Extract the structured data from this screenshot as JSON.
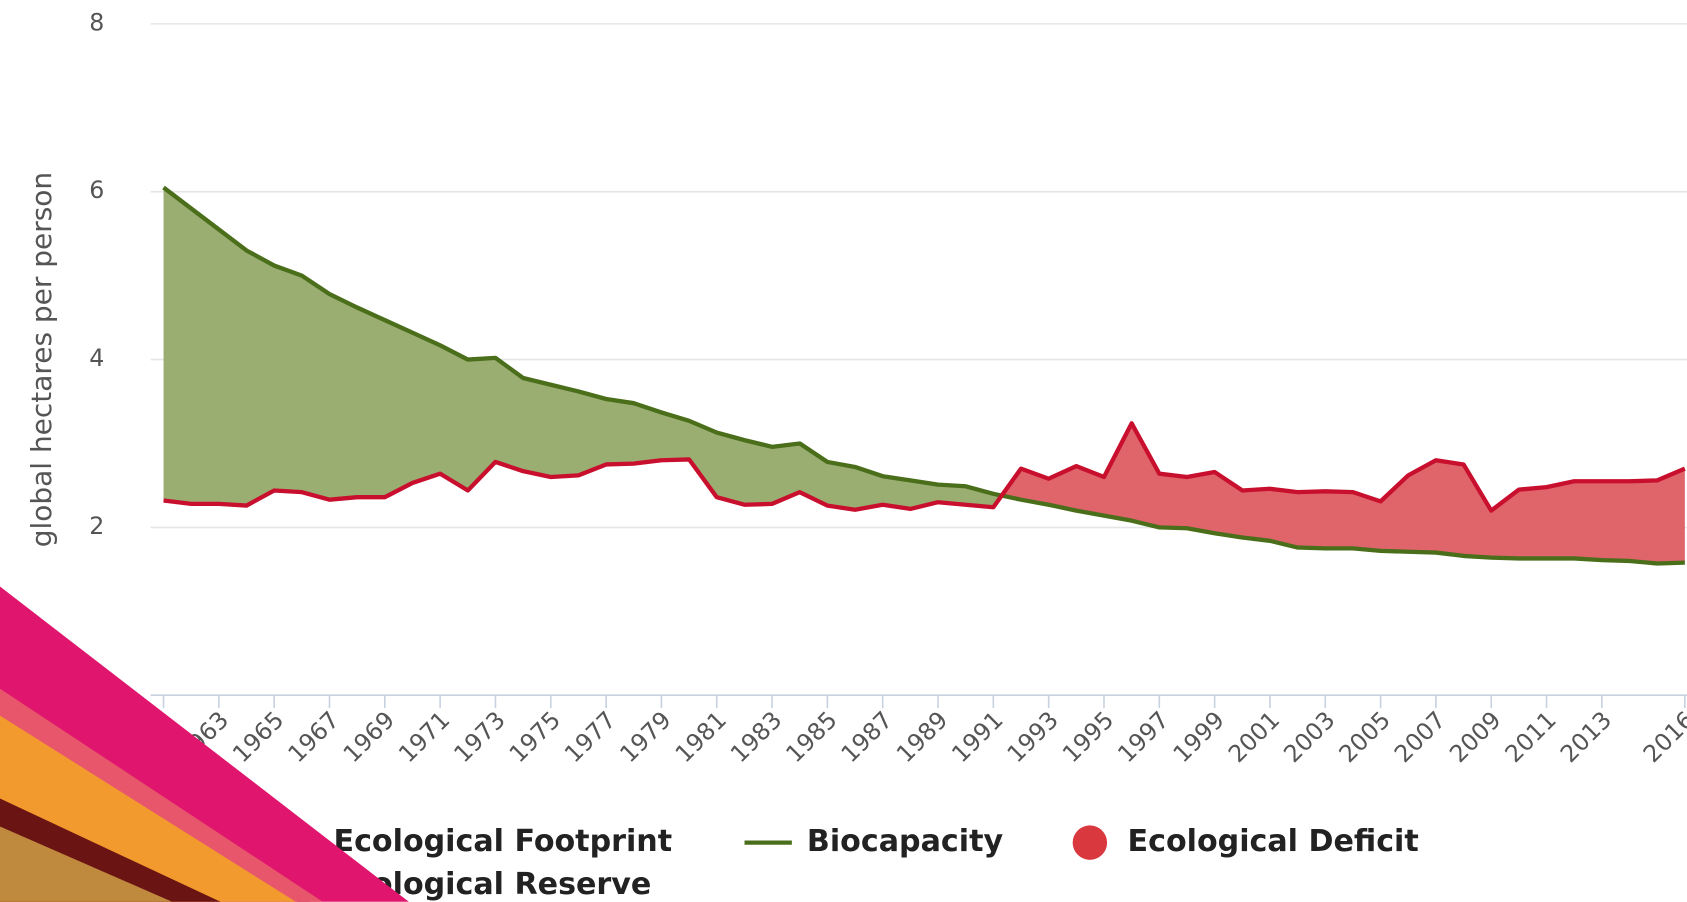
{
  "chart_data": {
    "type": "line",
    "y_label": "global hectares per person",
    "x": [
      1961,
      1962,
      1963,
      1964,
      1965,
      1966,
      1967,
      1968,
      1969,
      1970,
      1971,
      1972,
      1973,
      1974,
      1975,
      1976,
      1977,
      1978,
      1979,
      1980,
      1981,
      1982,
      1983,
      1984,
      1985,
      1986,
      1987,
      1988,
      1989,
      1990,
      1991,
      1992,
      1993,
      1994,
      1995,
      1996,
      1997,
      1998,
      1999,
      2000,
      2001,
      2002,
      2003,
      2004,
      2005,
      2006,
      2007,
      2008,
      2009,
      2010,
      2011,
      2012,
      2013,
      2014,
      2015,
      2016
    ],
    "xlim": [
      1961,
      2016
    ],
    "xticks": [
      1961,
      1963,
      1965,
      1967,
      1969,
      1971,
      1973,
      1975,
      1977,
      1979,
      1981,
      1983,
      1985,
      1987,
      1989,
      1991,
      1993,
      1995,
      1997,
      1999,
      2001,
      2003,
      2005,
      2007,
      2009,
      2011,
      2013,
      2016
    ],
    "ylim": [
      0,
      8
    ],
    "yticks": [
      0,
      2,
      4,
      6,
      8
    ],
    "grid": true,
    "series": [
      {
        "name": "Ecological Footprint",
        "color": "#c8102e",
        "values": [
          2.32,
          2.28,
          2.28,
          2.26,
          2.44,
          2.42,
          2.33,
          2.36,
          2.36,
          2.53,
          2.64,
          2.44,
          2.78,
          2.67,
          2.6,
          2.62,
          2.75,
          2.76,
          2.8,
          2.81,
          2.36,
          2.27,
          2.28,
          2.42,
          2.26,
          2.21,
          2.27,
          2.22,
          2.3,
          2.27,
          2.24,
          2.7,
          2.58,
          2.73,
          2.6,
          3.24,
          2.64,
          2.6,
          2.66,
          2.44,
          2.46,
          2.42,
          2.43,
          2.42,
          2.31,
          2.62,
          2.8,
          2.75,
          2.2,
          2.45,
          2.48,
          2.55,
          2.55,
          2.55,
          2.56,
          2.7
        ]
      },
      {
        "name": "Biocapacity",
        "color": "#4a6e1a",
        "values": [
          6.05,
          5.8,
          5.55,
          5.3,
          5.12,
          5.0,
          4.78,
          4.62,
          4.47,
          4.32,
          4.17,
          4.0,
          4.02,
          3.78,
          3.7,
          3.62,
          3.53,
          3.48,
          3.37,
          3.27,
          3.13,
          3.04,
          2.96,
          3.0,
          2.78,
          2.72,
          2.61,
          2.56,
          2.51,
          2.49,
          2.4,
          2.33,
          2.27,
          2.2,
          2.14,
          2.08,
          2.0,
          1.99,
          1.93,
          1.88,
          1.84,
          1.76,
          1.75,
          1.75,
          1.72,
          1.71,
          1.7,
          1.66,
          1.64,
          1.63,
          1.63,
          1.63,
          1.61,
          1.6,
          1.57,
          1.58
        ]
      }
    ],
    "areas": [
      {
        "name": "Ecological Deficit",
        "color": "#e0656b"
      },
      {
        "name": "Ecological Reserve",
        "color": "#9aae72"
      }
    ]
  }
}
